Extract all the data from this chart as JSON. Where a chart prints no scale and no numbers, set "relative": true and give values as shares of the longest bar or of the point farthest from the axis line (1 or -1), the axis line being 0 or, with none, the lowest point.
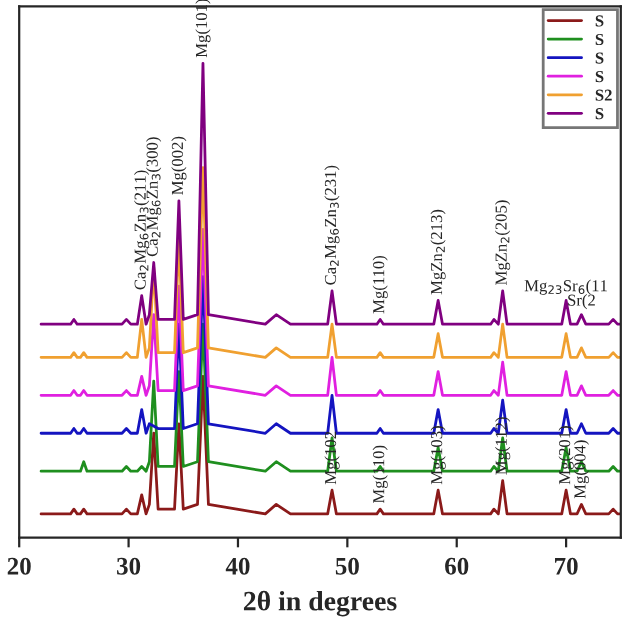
{
  "chart_data": {
    "type": "line",
    "xlabel": "2θ in degrees",
    "relative": true,
    "legend": "top right",
    "grid": false,
    "marker": "none",
    "line_style": "solid",
    "x": [
      22,
      24.7,
      25.0,
      25.3,
      25.6,
      25.9,
      26.2,
      29.4,
      29.8,
      30.2,
      30.8,
      31.2,
      31.6,
      31.9,
      32.3,
      32.7,
      34.2,
      34.6,
      35.0,
      36.3,
      36.8,
      37.3,
      42.5,
      43.5,
      44.8,
      48.2,
      48.6,
      49.0,
      52.7,
      53.0,
      53.3,
      57.9,
      58.3,
      58.7,
      63.1,
      63.4,
      63.8,
      64.2,
      64.6,
      69.6,
      70.0,
      70.4,
      71.0,
      71.4,
      71.8,
      73.9,
      74.3,
      74.7,
      75
    ],
    "xlim": [
      20,
      75
    ],
    "xticks": [
      20,
      30,
      40,
      50,
      60,
      70
    ],
    "series": [
      {
        "name": "S",
        "color": "#8b1a1a",
        "values": [
          0.05,
          0.05,
          0.06,
          0.05,
          0.05,
          0.06,
          0.05,
          0.05,
          0.06,
          0.05,
          0.05,
          0.09,
          0.05,
          0.07,
          0.22,
          0.06,
          0.06,
          0.24,
          0.06,
          0.07,
          0.34,
          0.07,
          0.05,
          0.07,
          0.05,
          0.05,
          0.1,
          0.05,
          0.05,
          0.06,
          0.05,
          0.05,
          0.1,
          0.05,
          0.05,
          0.06,
          0.05,
          0.12,
          0.05,
          0.05,
          0.1,
          0.05,
          0.05,
          0.07,
          0.05,
          0.05,
          0.06,
          0.05,
          0.05
        ]
      },
      {
        "name": "S",
        "color": "#1f8f1f",
        "values": [
          0.14,
          0.14,
          0.14,
          0.14,
          0.14,
          0.16,
          0.14,
          0.14,
          0.15,
          0.14,
          0.14,
          0.15,
          0.14,
          0.16,
          0.33,
          0.15,
          0.15,
          0.35,
          0.15,
          0.16,
          0.45,
          0.16,
          0.14,
          0.16,
          0.14,
          0.14,
          0.21,
          0.14,
          0.14,
          0.15,
          0.14,
          0.14,
          0.19,
          0.14,
          0.14,
          0.15,
          0.14,
          0.21,
          0.14,
          0.14,
          0.19,
          0.14,
          0.14,
          0.16,
          0.14,
          0.14,
          0.15,
          0.14,
          0.14
        ]
      },
      {
        "name": "S",
        "color": "#1414c0",
        "values": [
          0.22,
          0.22,
          0.23,
          0.22,
          0.22,
          0.23,
          0.22,
          0.22,
          0.23,
          0.22,
          0.22,
          0.27,
          0.22,
          0.24,
          null,
          0.23,
          0.23,
          0.45,
          0.23,
          0.24,
          0.55,
          0.24,
          0.22,
          0.24,
          0.22,
          0.22,
          0.3,
          0.22,
          0.22,
          0.23,
          0.22,
          0.22,
          0.27,
          0.22,
          0.22,
          0.23,
          0.22,
          0.29,
          0.22,
          0.22,
          0.27,
          0.22,
          0.22,
          0.24,
          0.22,
          0.22,
          0.23,
          0.22,
          0.22
        ]
      },
      {
        "name": "S",
        "color": "#e020e0",
        "values": [
          0.3,
          0.3,
          0.31,
          0.3,
          0.3,
          0.31,
          0.3,
          0.3,
          0.31,
          0.3,
          0.3,
          0.34,
          0.3,
          0.32,
          0.47,
          0.31,
          0.31,
          0.53,
          0.31,
          0.32,
          0.65,
          0.32,
          0.3,
          0.32,
          0.3,
          0.3,
          0.38,
          0.3,
          0.3,
          0.31,
          0.3,
          0.3,
          0.35,
          0.3,
          0.3,
          0.31,
          0.3,
          0.37,
          0.3,
          0.3,
          0.35,
          0.3,
          0.3,
          0.32,
          0.3,
          0.3,
          0.31,
          0.3,
          0.3
        ]
      },
      {
        "name": "S2",
        "color": "#f0a030",
        "values": [
          0.38,
          0.38,
          0.39,
          0.38,
          0.38,
          0.39,
          0.38,
          0.38,
          0.39,
          0.38,
          0.38,
          0.46,
          0.38,
          0.4,
          0.57,
          0.39,
          0.39,
          0.63,
          0.39,
          0.4,
          0.78,
          0.4,
          0.38,
          0.4,
          0.38,
          0.38,
          0.45,
          0.38,
          0.38,
          0.39,
          0.38,
          0.38,
          0.43,
          0.38,
          0.38,
          0.39,
          0.38,
          0.45,
          0.38,
          0.38,
          0.43,
          0.38,
          0.38,
          0.4,
          0.38,
          0.38,
          0.39,
          0.38,
          0.38
        ]
      },
      {
        "name": "S",
        "color": "#800080",
        "values": [
          0.45,
          0.45,
          0.46,
          0.45,
          0.45,
          0.45,
          0.45,
          0.45,
          0.46,
          0.45,
          0.45,
          0.51,
          0.45,
          0.47,
          0.58,
          0.46,
          0.46,
          0.71,
          0.46,
          0.47,
          1.0,
          0.47,
          0.45,
          0.47,
          0.45,
          0.45,
          0.52,
          0.45,
          0.45,
          0.46,
          0.45,
          0.45,
          0.5,
          0.45,
          0.45,
          0.46,
          0.45,
          0.52,
          0.45,
          0.45,
          0.5,
          0.45,
          0.45,
          0.47,
          0.45,
          0.45,
          0.46,
          0.45,
          0.45
        ]
      }
    ],
    "annotations": [
      {
        "text": "Ca$_{2}$Mg$_{6}$Zn$_{3}$(211)",
        "x": 31.2,
        "y": 0.51
      },
      {
        "text": "Ca$_{2}$Mg$_{6}$Zn$_{3}$(300)",
        "x": 32.3,
        "y": 0.58
      },
      {
        "text": "Mg(002)",
        "x": 34.6,
        "y": 0.71
      },
      {
        "text": "Mg(101)",
        "x": 36.8,
        "y": 1.0
      },
      {
        "text": "Ca$_{2}$Mg$_{6}$Zn$_{3}$(231)",
        "x": 48.6,
        "y": 0.52
      },
      {
        "text": "Mg(110)",
        "x": 53.0,
        "y": 0.46
      },
      {
        "text": "MgZn$_{2}$(213)",
        "x": 58.3,
        "y": 0.5
      },
      {
        "text": "MgZn$_{2}$(205)",
        "x": 64.2,
        "y": 0.52
      },
      {
        "text": "Mg$_{23}$Sr$_{6}$(11",
        "x": 70.0,
        "y": 0.5
      },
      {
        "text": "Sr(2",
        "x": 71.4,
        "y": 0.47
      },
      {
        "text": "Mg(102",
        "x": 48.6,
        "y": 0.1
      },
      {
        "text": "Mg(110)",
        "x": 53.0,
        "y": 0.06
      },
      {
        "text": "Mg(103)",
        "x": 58.3,
        "y": 0.1
      },
      {
        "text": "Mg(112)",
        "x": 64.2,
        "y": 0.12
      },
      {
        "text": "Mg(201)",
        "x": 70.0,
        "y": 0.1
      },
      {
        "text": "Mg(004)",
        "x": 71.4,
        "y": 0.07
      }
    ]
  }
}
